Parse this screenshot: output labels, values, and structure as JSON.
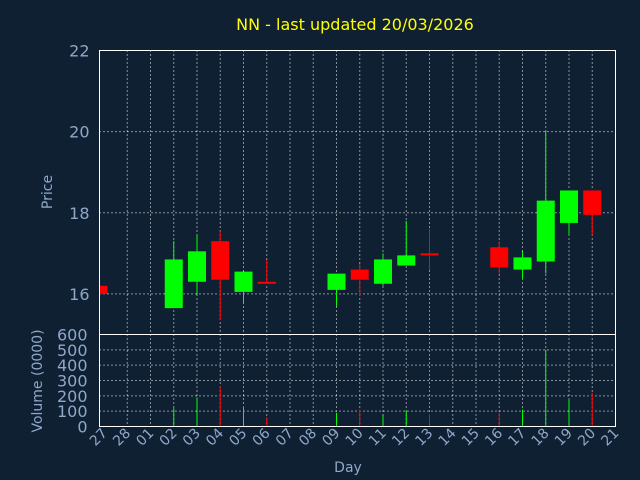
{
  "chart_data": {
    "type": "candlestick",
    "title": "NN - last updated 20/03/2026",
    "xlabel": "Day",
    "price_panel": {
      "ylabel": "Price",
      "ylim": [
        15,
        22
      ],
      "yticks": [
        "16",
        "18",
        "20",
        "22"
      ]
    },
    "volume_panel": {
      "ylabel": "Volume (0000)",
      "ylim": [
        0,
        600
      ],
      "yticks": [
        "0",
        "100",
        "200",
        "300",
        "400",
        "500",
        "600"
      ]
    },
    "categories": [
      "27",
      "28",
      "01",
      "02",
      "03",
      "04",
      "05",
      "06",
      "07",
      "08",
      "09",
      "10",
      "11",
      "12",
      "13",
      "14",
      "15",
      "16",
      "17",
      "18",
      "19",
      "20",
      "21"
    ],
    "candles": [
      {
        "day": "27",
        "open": 16.2,
        "close": 16.0,
        "high": 16.2,
        "low": 16.0,
        "volume": 0
      },
      {
        "day": "02",
        "open": 15.65,
        "close": 16.85,
        "high": 17.3,
        "low": 15.65,
        "volume": 120
      },
      {
        "day": "03",
        "open": 16.3,
        "close": 17.05,
        "high": 17.45,
        "low": 15.95,
        "volume": 190
      },
      {
        "day": "04",
        "open": 17.3,
        "close": 16.35,
        "high": 17.55,
        "low": 15.35,
        "volume": 260
      },
      {
        "day": "05",
        "open": 16.05,
        "close": 16.55,
        "high": 16.55,
        "low": 15.75,
        "volume": 130
      },
      {
        "day": "06",
        "open": 16.3,
        "close": 16.25,
        "high": 16.85,
        "low": 16.25,
        "volume": 60
      },
      {
        "day": "09",
        "open": 16.1,
        "close": 16.5,
        "high": 16.5,
        "low": 15.7,
        "volume": 90
      },
      {
        "day": "10",
        "open": 16.6,
        "close": 16.35,
        "high": 16.75,
        "low": 15.95,
        "volume": 110
      },
      {
        "day": "11",
        "open": 16.25,
        "close": 16.85,
        "high": 17.0,
        "low": 16.2,
        "volume": 70
      },
      {
        "day": "12",
        "open": 16.7,
        "close": 16.95,
        "high": 17.8,
        "low": 16.7,
        "volume": 100
      },
      {
        "day": "13",
        "open": 17.0,
        "close": 16.95,
        "high": 17.6,
        "low": 16.6,
        "volume": 80
      },
      {
        "day": "16",
        "open": 17.15,
        "close": 16.65,
        "high": 17.3,
        "low": 16.5,
        "volume": 90
      },
      {
        "day": "17",
        "open": 16.6,
        "close": 16.9,
        "high": 17.05,
        "low": 16.35,
        "volume": 110
      },
      {
        "day": "18",
        "open": 16.8,
        "close": 18.3,
        "high": 20.0,
        "low": 16.5,
        "volume": 500
      },
      {
        "day": "19",
        "open": 17.75,
        "close": 18.55,
        "high": 18.55,
        "low": 17.45,
        "volume": 180
      },
      {
        "day": "20",
        "open": 18.55,
        "close": 17.95,
        "high": 18.55,
        "low": 17.45,
        "volume": 220
      }
    ],
    "colors": {
      "up": "#00ff00",
      "down": "#ff0000",
      "background": "#0f2033",
      "grid": "#ffffff",
      "axis_text": "#8fa8c8",
      "title": "#ffff00"
    },
    "grid": true
  }
}
